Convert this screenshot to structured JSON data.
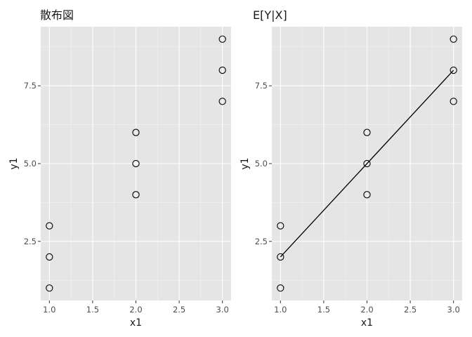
{
  "chart_data": [
    {
      "type": "scatter",
      "title": "散布図",
      "xlabel": "x1",
      "ylabel": "y1",
      "xlim": [
        0.9,
        3.1
      ],
      "ylim": [
        0.6,
        9.4
      ],
      "x_ticks": [
        1.0,
        1.5,
        2.0,
        2.5,
        3.0
      ],
      "x_tick_labels": [
        "1.0",
        "1.5",
        "2.0",
        "2.5",
        "3.0"
      ],
      "y_ticks": [
        2.5,
        5.0,
        7.5
      ],
      "y_tick_labels": [
        "2.5",
        "5.0",
        "7.5"
      ],
      "grid": true,
      "points": [
        {
          "x": 1,
          "y": 1
        },
        {
          "x": 1,
          "y": 2
        },
        {
          "x": 1,
          "y": 3
        },
        {
          "x": 2,
          "y": 4
        },
        {
          "x": 2,
          "y": 5
        },
        {
          "x": 2,
          "y": 6
        },
        {
          "x": 3,
          "y": 7
        },
        {
          "x": 3,
          "y": 8
        },
        {
          "x": 3,
          "y": 9
        }
      ]
    },
    {
      "type": "scatter",
      "title": "E[Y|X]",
      "xlabel": "x1",
      "ylabel": "y1",
      "xlim": [
        0.9,
        3.1
      ],
      "ylim": [
        0.6,
        9.4
      ],
      "x_ticks": [
        1.0,
        1.5,
        2.0,
        2.5,
        3.0
      ],
      "x_tick_labels": [
        "1.0",
        "1.5",
        "2.0",
        "2.5",
        "3.0"
      ],
      "y_ticks": [
        2.5,
        5.0,
        7.5
      ],
      "y_tick_labels": [
        "2.5",
        "5.0",
        "7.5"
      ],
      "grid": true,
      "points": [
        {
          "x": 1,
          "y": 1
        },
        {
          "x": 1,
          "y": 2
        },
        {
          "x": 1,
          "y": 3
        },
        {
          "x": 2,
          "y": 4
        },
        {
          "x": 2,
          "y": 5
        },
        {
          "x": 2,
          "y": 6
        },
        {
          "x": 3,
          "y": 7
        },
        {
          "x": 3,
          "y": 8
        },
        {
          "x": 3,
          "y": 9
        }
      ],
      "line": [
        {
          "x": 1,
          "y": 2
        },
        {
          "x": 2,
          "y": 5
        },
        {
          "x": 3,
          "y": 8
        }
      ]
    }
  ]
}
